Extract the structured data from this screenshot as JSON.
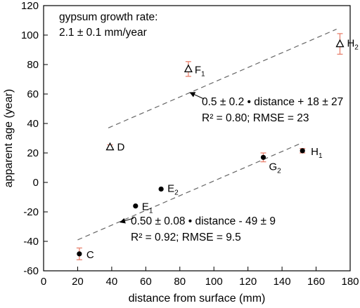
{
  "chart_data": {
    "type": "scatter",
    "xlabel": "distance from surface (mm)",
    "ylabel": "apparent age (year)",
    "xlim": [
      0,
      180
    ],
    "ylim": [
      -60,
      120
    ],
    "xticks": [
      0,
      20,
      40,
      60,
      80,
      100,
      120,
      140,
      160,
      180
    ],
    "yticks": [
      -60,
      -40,
      -20,
      0,
      20,
      40,
      60,
      80,
      100,
      120
    ],
    "grid": false,
    "annotation_top": [
      "gypsum growth rate:",
      "2.1 ± 0.1 mm/year"
    ],
    "series": [
      {
        "marker": "triangle-open",
        "points": [
          {
            "x": 39,
            "y": 24,
            "err": 1.5,
            "label": "D",
            "sub": ""
          },
          {
            "x": 85,
            "y": 77,
            "err": 5,
            "label": "F",
            "sub": "1"
          },
          {
            "x": 174,
            "y": 94,
            "err": 7,
            "label": "H",
            "sub": "2"
          }
        ],
        "fit": {
          "x_range": [
            38,
            172
          ],
          "slope": 0.5,
          "intercept": 18,
          "label_line1": "0.5 ± 0.2 • distance + 18 ± 27",
          "label_line2": "R² = 0.80; RMSE = 23",
          "arrow_to": [
            86,
            61
          ]
        }
      },
      {
        "marker": "circle-filled",
        "points": [
          {
            "x": 21,
            "y": -48.5,
            "err": 4,
            "label": "C",
            "sub": ""
          },
          {
            "x": 54,
            "y": -16,
            "err": 0,
            "label": "E",
            "sub": "1"
          },
          {
            "x": 69,
            "y": -4.5,
            "err": 0,
            "label": "E",
            "sub": "2"
          },
          {
            "x": 129,
            "y": 17,
            "err": 3,
            "label": "G",
            "sub": "2"
          },
          {
            "x": 152,
            "y": 21.5,
            "err": 1.5,
            "label": "H",
            "sub": "1"
          }
        ],
        "fit": {
          "x_range": [
            20,
            152
          ],
          "slope": 0.5,
          "intercept": -49,
          "label_line1": "0.50 ± 0.08 • distance - 49 ± 9",
          "label_line2": "R² = 0.92; RMSE = 9.5",
          "arrow_to": [
            45,
            -27
          ]
        }
      }
    ]
  }
}
